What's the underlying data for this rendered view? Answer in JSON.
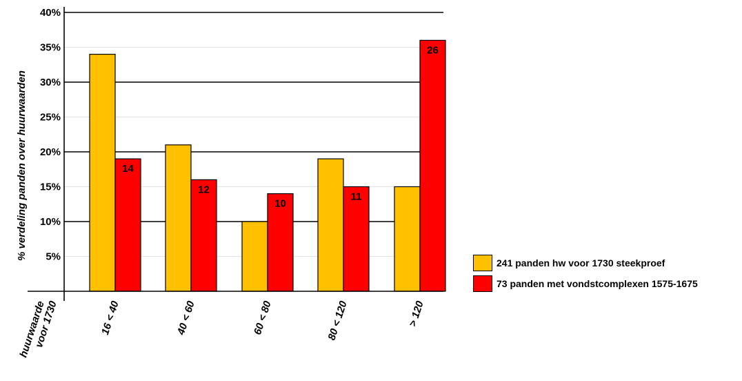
{
  "chart_data": {
    "type": "bar",
    "ylabel": "% verdeling panden over huurwaarden",
    "xlabel": [
      "huurwaarde",
      "voor 1730"
    ],
    "categories": [
      "16 < 40",
      "40 < 60",
      "60 < 80",
      "80 < 120",
      "> 120"
    ],
    "ylim": [
      0,
      40
    ],
    "yticks": [
      "5%",
      "10%",
      "15%",
      "20%",
      "25%",
      "30%",
      "35%",
      "40%"
    ],
    "grid": "horizontal",
    "legend_position": "right",
    "series": [
      {
        "name": "241 panden hw voor 1730 steekproef",
        "color": "#FFC000",
        "values": [
          34,
          21,
          10,
          19,
          15
        ],
        "labels": [
          "",
          "",
          "",
          "",
          ""
        ]
      },
      {
        "name": "73 panden met vondstcomplexen 1575-1675",
        "color": "#FF0000",
        "values": [
          19,
          16,
          14,
          15,
          36
        ],
        "labels": [
          "14",
          "12",
          "10",
          "11",
          "26"
        ]
      }
    ]
  }
}
